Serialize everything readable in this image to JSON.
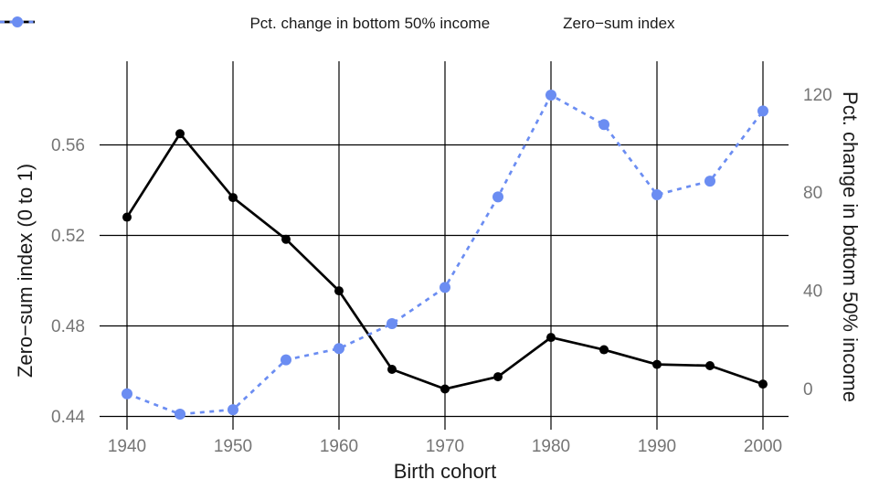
{
  "legend": {
    "items": [
      {
        "label": "Pct. change in bottom 50% income",
        "color": "#000000",
        "dashed": false
      },
      {
        "label": "Zero−sum index",
        "color": "#6b8df2",
        "dashed": true
      }
    ]
  },
  "axes": {
    "left": {
      "title": "Zero−sum index (0 to 1)",
      "tick_labels": [
        "0.44",
        "0.48",
        "0.52",
        "0.56"
      ],
      "tick_values": [
        0.44,
        0.48,
        0.52,
        0.56
      ]
    },
    "right": {
      "title": "Pct. change in bottom 50% income",
      "tick_labels": [
        "0",
        "40",
        "80",
        "120"
      ],
      "tick_values": [
        0,
        40,
        80,
        120
      ]
    },
    "x": {
      "title": "Birth cohort",
      "tick_labels": [
        "1940",
        "1950",
        "1960",
        "1970",
        "1980",
        "1990",
        "2000"
      ],
      "tick_values": [
        1940,
        1950,
        1960,
        1970,
        1980,
        1990,
        2000
      ]
    }
  },
  "chart_data": {
    "type": "line",
    "title": "",
    "xlabel": "Birth cohort",
    "ylabel_left": "Zero−sum index (0 to 1)",
    "ylabel_right": "Pct. change in bottom 50% income",
    "x": [
      1940,
      1945,
      1950,
      1955,
      1960,
      1965,
      1970,
      1975,
      1980,
      1985,
      1990,
      1995,
      2000
    ],
    "series": [
      {
        "name": "Pct. change in bottom 50% income",
        "axis": "right",
        "color": "#000000",
        "style": "solid",
        "marker": "circle",
        "values": [
          70,
          104,
          78,
          61,
          40,
          8,
          0,
          5,
          21,
          16,
          10,
          9.5,
          2
        ]
      },
      {
        "name": "Zero−sum index",
        "axis": "left",
        "color": "#6b8df2",
        "style": "dashed",
        "marker": "circle",
        "values": [
          0.45,
          0.441,
          0.443,
          0.465,
          0.47,
          0.481,
          0.497,
          0.537,
          0.582,
          0.569,
          0.538,
          0.544,
          0.575
        ]
      }
    ],
    "left_ylim": [
      0.44,
      0.597
    ],
    "right_ylim": [
      -11,
      133
    ],
    "xlim": [
      1937.8,
      2002.0
    ],
    "grid": true,
    "legend_position": "top"
  },
  "colors": {
    "grid": "#000000",
    "tick_label": "#757575",
    "text": "#1a1a1a",
    "background": "#ffffff"
  }
}
